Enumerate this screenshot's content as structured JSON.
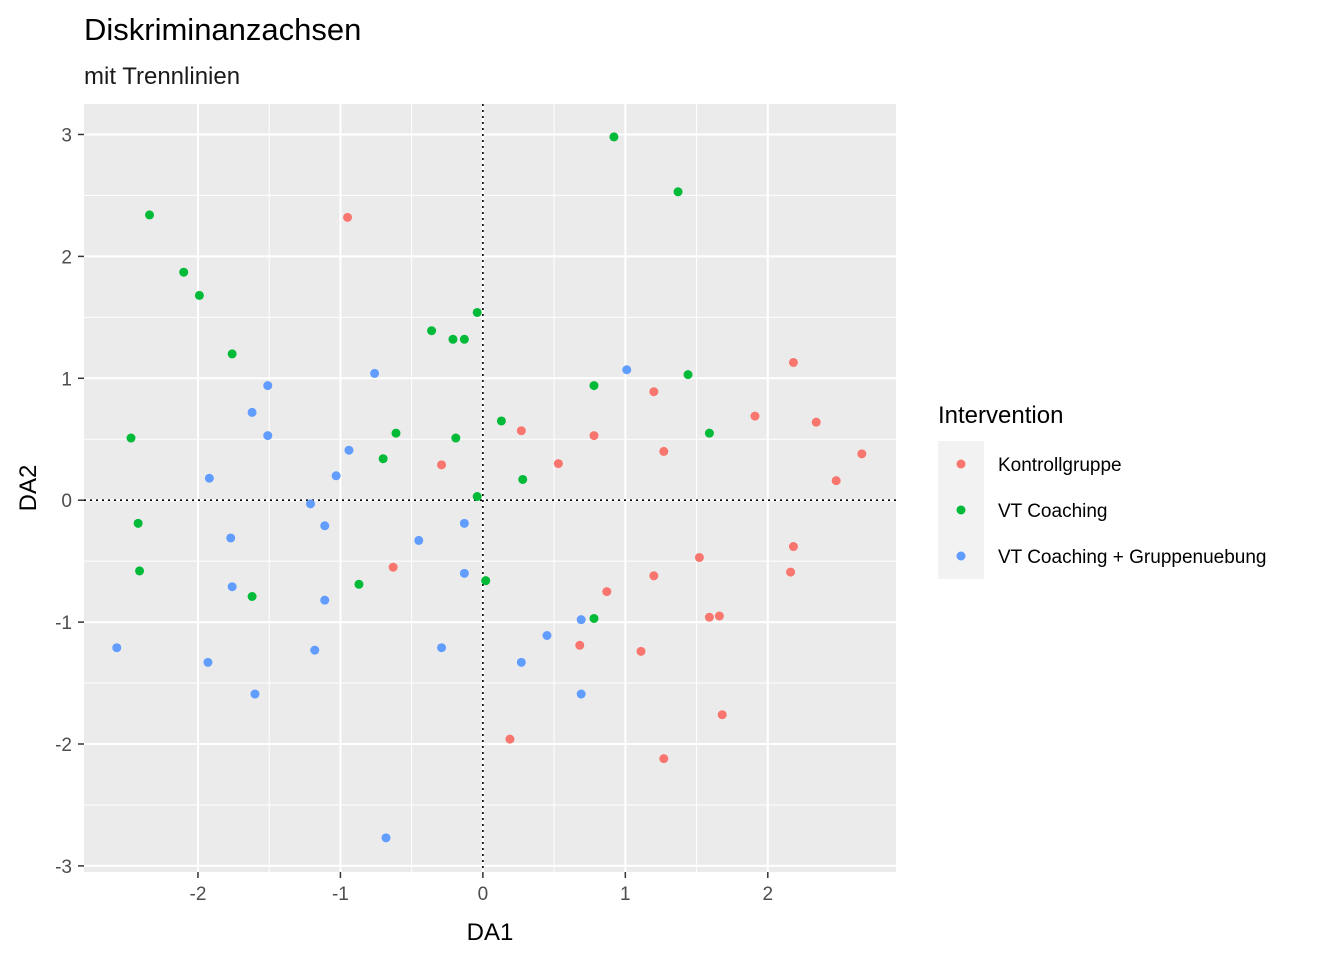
{
  "chart_data": {
    "type": "scatter",
    "title": "Diskriminanzachsen",
    "subtitle": "mit Trennlinien",
    "xlabel": "DA1",
    "ylabel": "DA2",
    "xlim": [
      -2.8,
      2.9
    ],
    "ylim": [
      -3.05,
      3.25
    ],
    "xticks": [
      -2,
      -1,
      0,
      1,
      2
    ],
    "yticks": [
      -3,
      -2,
      -1,
      0,
      1,
      2,
      3
    ],
    "reference_lines": {
      "x": 0,
      "y": 0,
      "style": "dotted"
    },
    "legend": {
      "title": "Intervention",
      "position": "right"
    },
    "series": [
      {
        "name": "Kontrollgruppe",
        "color": "#F8766D",
        "points": [
          [
            -0.95,
            2.32
          ],
          [
            -0.29,
            0.29
          ],
          [
            -0.63,
            -0.55
          ],
          [
            0.27,
            0.57
          ],
          [
            0.53,
            0.3
          ],
          [
            0.78,
            0.53
          ],
          [
            1.2,
            0.89
          ],
          [
            1.27,
            0.4
          ],
          [
            1.91,
            0.69
          ],
          [
            2.18,
            1.13
          ],
          [
            2.34,
            0.64
          ],
          [
            2.66,
            0.38
          ],
          [
            2.48,
            0.16
          ],
          [
            2.18,
            -0.38
          ],
          [
            2.16,
            -0.59
          ],
          [
            1.52,
            -0.47
          ],
          [
            1.2,
            -0.62
          ],
          [
            0.87,
            -0.75
          ],
          [
            1.59,
            -0.96
          ],
          [
            1.66,
            -0.95
          ],
          [
            0.68,
            -1.19
          ],
          [
            1.11,
            -1.24
          ],
          [
            1.68,
            -1.76
          ],
          [
            0.19,
            -1.96
          ],
          [
            1.27,
            -2.12
          ]
        ]
      },
      {
        "name": "VT Coaching",
        "color": "#00BA38",
        "points": [
          [
            0.92,
            2.98
          ],
          [
            1.37,
            2.53
          ],
          [
            -2.34,
            2.34
          ],
          [
            -2.1,
            1.87
          ],
          [
            -1.99,
            1.68
          ],
          [
            -1.76,
            1.2
          ],
          [
            -0.36,
            1.39
          ],
          [
            -0.21,
            1.32
          ],
          [
            -0.13,
            1.32
          ],
          [
            -0.04,
            1.54
          ],
          [
            0.78,
            0.94
          ],
          [
            1.44,
            1.03
          ],
          [
            1.59,
            0.55
          ],
          [
            0.13,
            0.65
          ],
          [
            -0.61,
            0.55
          ],
          [
            -0.19,
            0.51
          ],
          [
            -2.47,
            0.51
          ],
          [
            -0.7,
            0.34
          ],
          [
            0.28,
            0.17
          ],
          [
            -0.04,
            0.03
          ],
          [
            -2.42,
            -0.19
          ],
          [
            -2.41,
            -0.58
          ],
          [
            0.02,
            -0.66
          ],
          [
            -0.87,
            -0.69
          ],
          [
            -1.62,
            -0.79
          ],
          [
            0.78,
            -0.97
          ]
        ]
      },
      {
        "name": "VT Coaching + Gruppenuebung",
        "color": "#619CFF",
        "points": [
          [
            1.01,
            1.07
          ],
          [
            -0.76,
            1.04
          ],
          [
            -1.51,
            0.94
          ],
          [
            -1.62,
            0.72
          ],
          [
            -1.51,
            0.53
          ],
          [
            -0.94,
            0.41
          ],
          [
            -1.92,
            0.18
          ],
          [
            -1.03,
            0.2
          ],
          [
            -1.21,
            -0.03
          ],
          [
            -1.11,
            -0.21
          ],
          [
            -0.13,
            -0.19
          ],
          [
            -0.45,
            -0.33
          ],
          [
            -1.77,
            -0.31
          ],
          [
            -0.13,
            -0.6
          ],
          [
            -1.76,
            -0.71
          ],
          [
            -1.11,
            -0.82
          ],
          [
            0.69,
            -0.98
          ],
          [
            0.45,
            -1.11
          ],
          [
            -2.57,
            -1.21
          ],
          [
            -1.18,
            -1.23
          ],
          [
            -0.29,
            -1.21
          ],
          [
            -1.93,
            -1.33
          ],
          [
            0.27,
            -1.33
          ],
          [
            -1.6,
            -1.59
          ],
          [
            0.69,
            -1.59
          ],
          [
            -0.68,
            -2.77
          ]
        ]
      }
    ]
  }
}
